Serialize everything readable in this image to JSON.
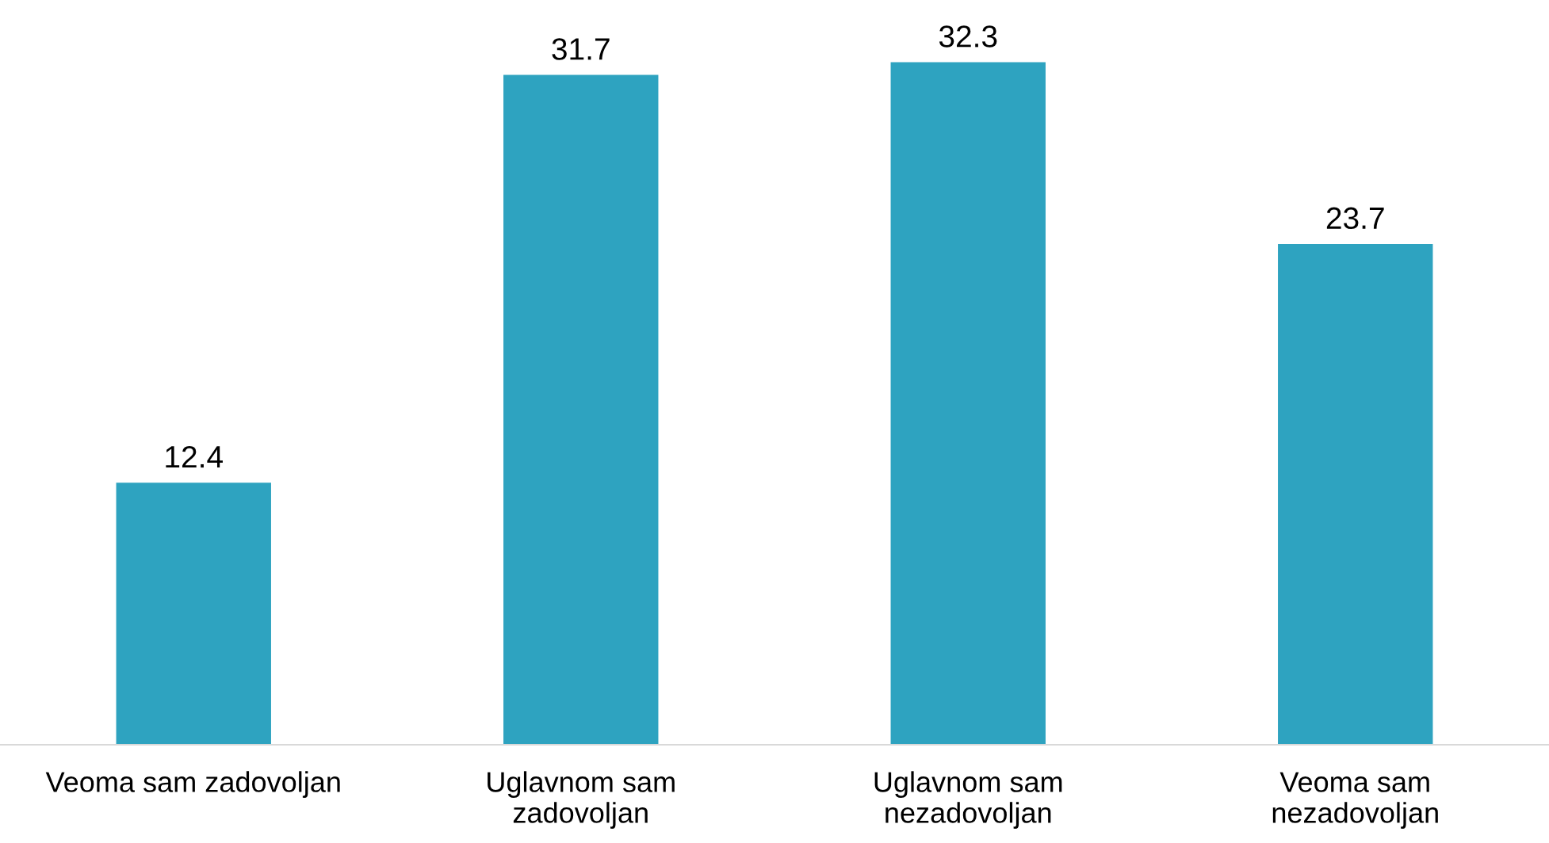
{
  "chart_data": {
    "type": "bar",
    "categories": [
      "Veoma sam zadovoljan",
      "Uglavnom sam\nzadovoljan",
      "Uglavnom sam\nnezadovoljan",
      "Veoma sam\nnezadovoljan"
    ],
    "values": [
      12.4,
      31.7,
      32.3,
      23.7
    ],
    "color": "#2ea3c0",
    "data_labels": true,
    "grid": false,
    "legend": false
  }
}
